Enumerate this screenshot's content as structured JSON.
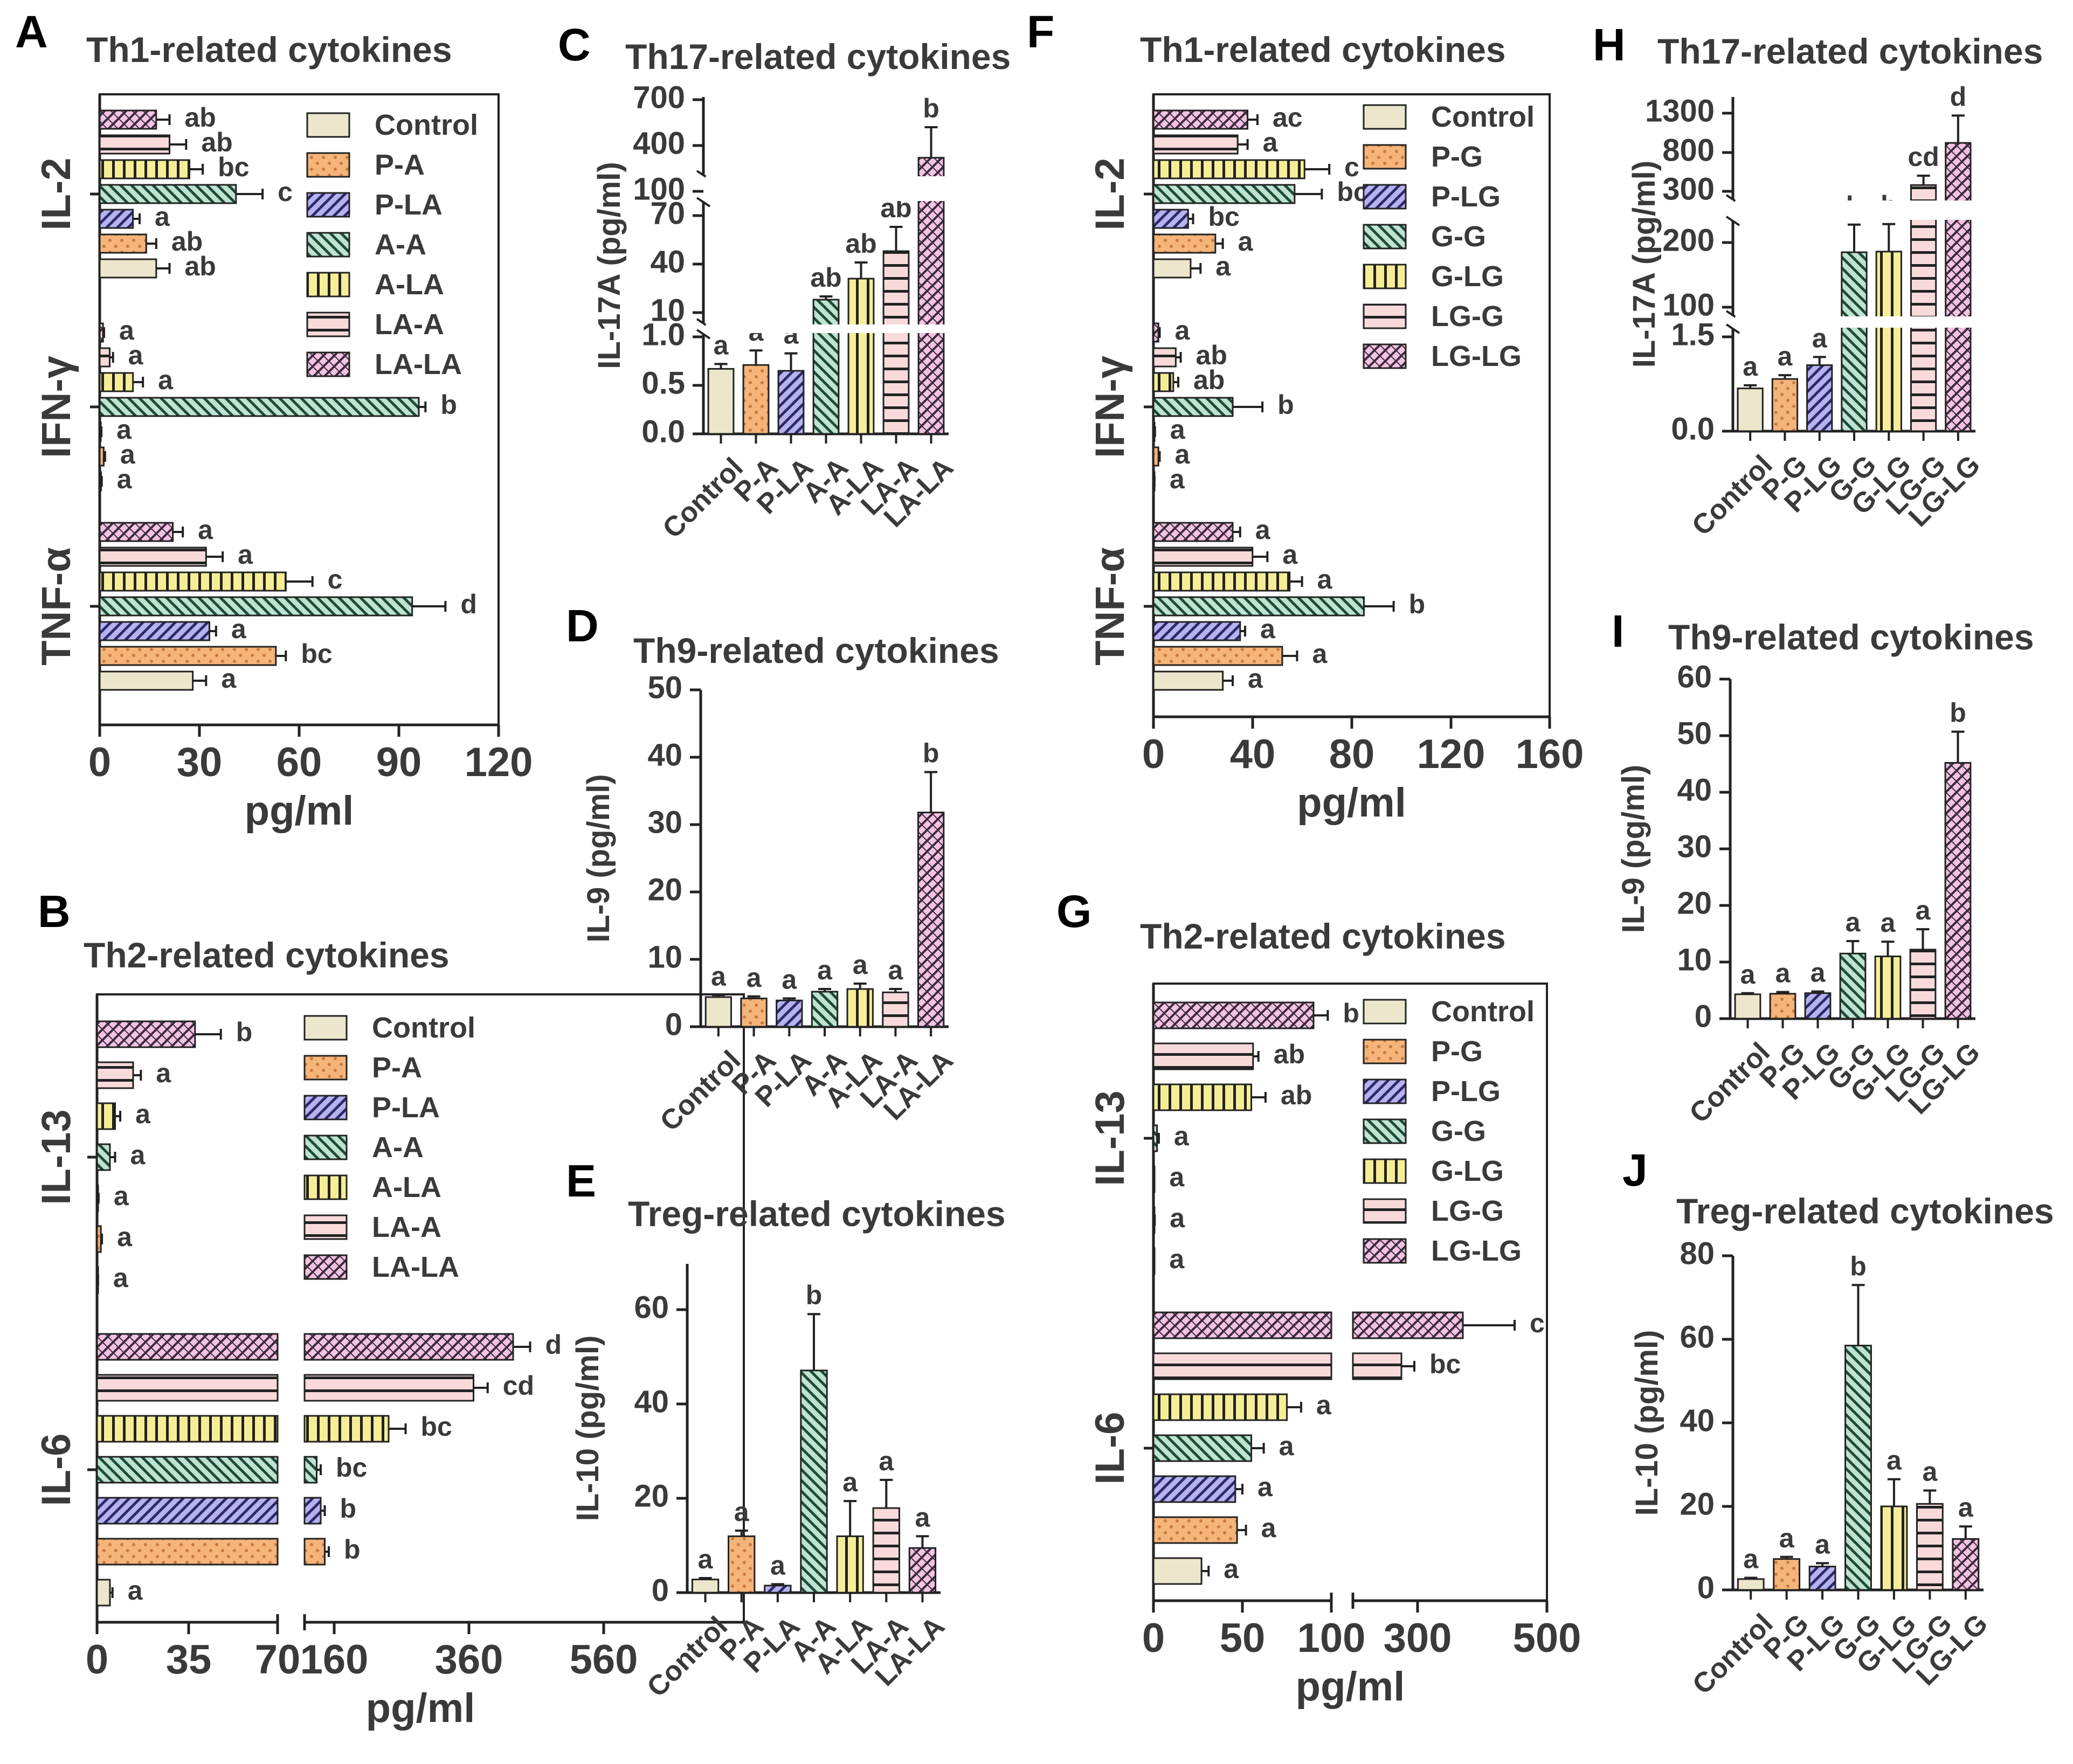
{
  "groups_A": [
    "Control",
    "P-A",
    "P-LA",
    "A-A",
    "A-LA",
    "LA-A",
    "LA-LA"
  ],
  "groups_G": [
    "Control",
    "P-G",
    "P-LG",
    "G-G",
    "G-LG",
    "LG-G",
    "LG-LG"
  ],
  "palette": {
    "Control": {
      "fill": "#ece6cc",
      "pattern": "solid"
    },
    "P": {
      "fill": "#f5b47a",
      "pattern": "dots"
    },
    "PL": {
      "fill": "#b7b2ee",
      "pattern": "diag"
    },
    "AA": {
      "fill": "#bfe3d0",
      "pattern": "diag-rev"
    },
    "AL": {
      "fill": "#f6ee96",
      "pattern": "vlines"
    },
    "LA": {
      "fill": "#f8dada",
      "pattern": "hlines"
    },
    "LL": {
      "fill": "#f3c3e3",
      "pattern": "cross"
    }
  },
  "chart_data": [
    {
      "panel": "A",
      "type": "bar",
      "orientation": "horizontal",
      "title": "Th1-related cytokines",
      "xlabel": "pg/ml",
      "xticks": [
        "0",
        "30",
        "60",
        "90",
        "120"
      ],
      "xlim": [
        0,
        120
      ],
      "categories": [
        "IL-2",
        "IFN-γ",
        "TNF-α"
      ],
      "legend": [
        "Control",
        "P-A",
        "P-LA",
        "A-A",
        "A-LA",
        "LA-A",
        "LA-LA"
      ],
      "values": [
        [
          17,
          14,
          10,
          41,
          27,
          21,
          17
        ],
        [
          0.4,
          1.2,
          0.3,
          96,
          10,
          3,
          1
        ],
        [
          28,
          53,
          33,
          94,
          56,
          32,
          22
        ]
      ],
      "errors": [
        [
          4,
          3,
          2,
          8,
          4,
          5,
          4
        ],
        [
          0.2,
          0.4,
          0.2,
          2,
          3,
          1,
          0.3
        ],
        [
          4,
          3,
          2,
          10,
          8,
          5,
          3
        ]
      ],
      "sig": [
        [
          "ab",
          "ab",
          "a",
          "c",
          "bc",
          "ab",
          "ab"
        ],
        [
          "a",
          "a",
          "a",
          "b",
          "a",
          "a",
          "a"
        ],
        [
          "a",
          "bc",
          "a",
          "d",
          "c",
          "a",
          "a"
        ]
      ]
    },
    {
      "panel": "B",
      "type": "bar",
      "orientation": "horizontal",
      "title": "Th2-related cytokines",
      "xlabel": "pg/ml",
      "xticks": [
        "0",
        "35",
        "70",
        "160",
        "360",
        "560"
      ],
      "categories": [
        "IL-13",
        "IL-6"
      ],
      "legend": [
        "Control",
        "P-A",
        "P-LA",
        "A-A",
        "A-LA",
        "LA-A",
        "LA-LA"
      ],
      "values": [
        [
          0.3,
          1.5,
          0.4,
          5,
          7,
          14,
          38
        ],
        [
          5,
          95,
          90,
          85,
          180,
          330,
          400
        ]
      ],
      "errors": [
        [
          0.1,
          0.4,
          0.2,
          2,
          2,
          3,
          10
        ],
        [
          1,
          5,
          5,
          5,
          30,
          25,
          30
        ]
      ],
      "sig": [
        [
          "a",
          "a",
          "a",
          "a",
          "a",
          "a",
          "b"
        ],
        [
          "a",
          "b",
          "b",
          "bc",
          "bc",
          "cd",
          "d"
        ]
      ]
    },
    {
      "panel": "C",
      "type": "bar",
      "title": "Th17-related cytokines",
      "ylabel": "IL-17A (pg/ml)",
      "yticks": [
        "0.0",
        "0.5",
        "1.0",
        "10",
        "40",
        "70",
        "100",
        "400",
        "700"
      ],
      "categories": [
        "Control",
        "P-A",
        "P-LA",
        "A-A",
        "A-LA",
        "LA-A",
        "LA-LA"
      ],
      "values": [
        0.67,
        0.71,
        0.65,
        18,
        31,
        48,
        320
      ],
      "errors": [
        0.05,
        0.15,
        0.18,
        2,
        10,
        15,
        200
      ],
      "sig": [
        "a",
        "a",
        "a",
        "ab",
        "ab",
        "ab",
        "b"
      ]
    },
    {
      "panel": "D",
      "type": "bar",
      "title": "Th9-related cytokines",
      "ylabel": "IL-9 (pg/ml)",
      "yticks": [
        "0",
        "10",
        "20",
        "30",
        "40",
        "50"
      ],
      "ylim": [
        0,
        50
      ],
      "categories": [
        "Control",
        "P-A",
        "P-LA",
        "A-A",
        "A-LA",
        "LA-A",
        "LA-LA"
      ],
      "values": [
        4.4,
        4.2,
        3.9,
        5.2,
        5.6,
        5.1,
        31.8
      ],
      "errors": [
        0.3,
        0.3,
        0.3,
        0.4,
        0.8,
        0.5,
        6
      ],
      "sig": [
        "a",
        "a",
        "a",
        "a",
        "a",
        "a",
        "b"
      ]
    },
    {
      "panel": "E",
      "type": "bar",
      "title": "Treg-related cytokines",
      "ylabel": "IL-10 (pg/ml)",
      "yticks": [
        "0",
        "20",
        "40",
        "60"
      ],
      "ylim": [
        0,
        70
      ],
      "categories": [
        "Control",
        "P-A",
        "P-LA",
        "A-A",
        "A-LA",
        "LA-A",
        "LA-LA"
      ],
      "values": [
        2.8,
        12,
        1.5,
        47.3,
        12,
        18,
        9.5
      ],
      "errors": [
        0.3,
        1.2,
        0.3,
        12,
        7.5,
        6,
        2.5
      ],
      "sig": [
        "a",
        "a",
        "a",
        "b",
        "a",
        "a",
        "a"
      ]
    },
    {
      "panel": "F",
      "type": "bar",
      "orientation": "horizontal",
      "title": "Th1-related cytokines",
      "xlabel": "pg/ml",
      "xticks": [
        "0",
        "40",
        "80",
        "120",
        "160"
      ],
      "xlim": [
        0,
        160
      ],
      "categories": [
        "IL-2",
        "IFN-γ",
        "TNF-α"
      ],
      "legend": [
        "Control",
        "P-G",
        "P-LG",
        "G-G",
        "G-LG",
        "LG-G",
        "LG-LG"
      ],
      "values": [
        [
          15,
          25,
          14,
          57,
          61,
          34,
          38
        ],
        [
          0.3,
          2,
          0.4,
          32,
          8,
          9,
          2
        ],
        [
          28,
          52,
          35,
          85,
          55,
          40,
          32
        ]
      ],
      "errors": [
        [
          4,
          3,
          2,
          11,
          10,
          4,
          4
        ],
        [
          0.1,
          0.5,
          0.2,
          12,
          2,
          2,
          0.5
        ],
        [
          4,
          6,
          2,
          12,
          5,
          6,
          3
        ]
      ],
      "sig": [
        [
          "a",
          "a",
          "bc",
          "bc",
          "c",
          "a",
          "ac"
        ],
        [
          "a",
          "a",
          "a",
          "b",
          "ab",
          "ab",
          "a"
        ],
        [
          "a",
          "a",
          "a",
          "b",
          "a",
          "a",
          "a"
        ]
      ]
    },
    {
      "panel": "G",
      "type": "bar",
      "orientation": "horizontal",
      "title": "Th2-related cytokines",
      "xlabel": "pg/ml",
      "xticks": [
        "0",
        "50",
        "100",
        "300",
        "500"
      ],
      "categories": [
        "IL-13",
        "IL-6"
      ],
      "legend": [
        "Control",
        "P-G",
        "P-LG",
        "G-G",
        "G-LG",
        "LG-G",
        "LG-LG"
      ],
      "values": [
        [
          0.3,
          0.5,
          0.3,
          2,
          55,
          56,
          90
        ],
        [
          27,
          47,
          46,
          55,
          75,
          250,
          370
        ]
      ],
      "errors": [
        [
          0.1,
          0.2,
          0.1,
          1,
          8,
          3,
          8
        ],
        [
          4,
          5,
          4,
          7,
          8,
          40,
          80
        ]
      ],
      "sig": [
        [
          "a",
          "a",
          "a",
          "a",
          "ab",
          "ab",
          "b"
        ],
        [
          "a",
          "a",
          "a",
          "a",
          "a",
          "bc",
          "c"
        ]
      ]
    },
    {
      "panel": "H",
      "type": "bar",
      "title": "Th17-related cytokines",
      "ylabel": "IL-17A (pg/ml)",
      "yticks": [
        "0.0",
        "1.5",
        "100",
        "200",
        "300",
        "800",
        "1300"
      ],
      "categories": [
        "Control",
        "P-G",
        "P-LG",
        "G-G",
        "G-LG",
        "LG-G",
        "LG-LG"
      ],
      "values": [
        0.68,
        0.83,
        1.05,
        185,
        186,
        380,
        920
      ],
      "errors": [
        0.05,
        0.06,
        0.13,
        50,
        50,
        120,
        350
      ],
      "sig": [
        "a",
        "a",
        "a",
        "b",
        "b",
        "cd",
        "d"
      ]
    },
    {
      "panel": "I",
      "type": "bar",
      "title": "Th9-related cytokines",
      "ylabel": "IL-9 (pg/ml)",
      "yticks": [
        "0",
        "10",
        "20",
        "30",
        "40",
        "50",
        "60"
      ],
      "ylim": [
        0,
        60
      ],
      "categories": [
        "Control",
        "P-G",
        "P-LG",
        "G-G",
        "G-LG",
        "LG-G",
        "LG-LG"
      ],
      "values": [
        4.3,
        4.4,
        4.5,
        11.5,
        11,
        12.2,
        45.2
      ],
      "errors": [
        0.2,
        0.3,
        0.3,
        2.2,
        2.6,
        3.6,
        5.5
      ],
      "sig": [
        "a",
        "a",
        "a",
        "a",
        "a",
        "a",
        "b"
      ]
    },
    {
      "panel": "J",
      "type": "bar",
      "title": "Treg-related cytokines",
      "ylabel": "IL-10 (pg/ml)",
      "yticks": [
        "0",
        "20",
        "40",
        "60",
        "80"
      ],
      "ylim": [
        0,
        80
      ],
      "categories": [
        "Control",
        "P-G",
        "P-LG",
        "G-G",
        "G-LG",
        "LG-G",
        "LG-LG"
      ],
      "values": [
        2.6,
        7.4,
        5.6,
        58.5,
        20,
        20.6,
        12.2
      ],
      "errors": [
        0.3,
        0.5,
        0.8,
        14.5,
        6.5,
        3.2,
        3
      ],
      "sig": [
        "a",
        "a",
        "a",
        "b",
        "a",
        "a",
        "a"
      ]
    }
  ]
}
